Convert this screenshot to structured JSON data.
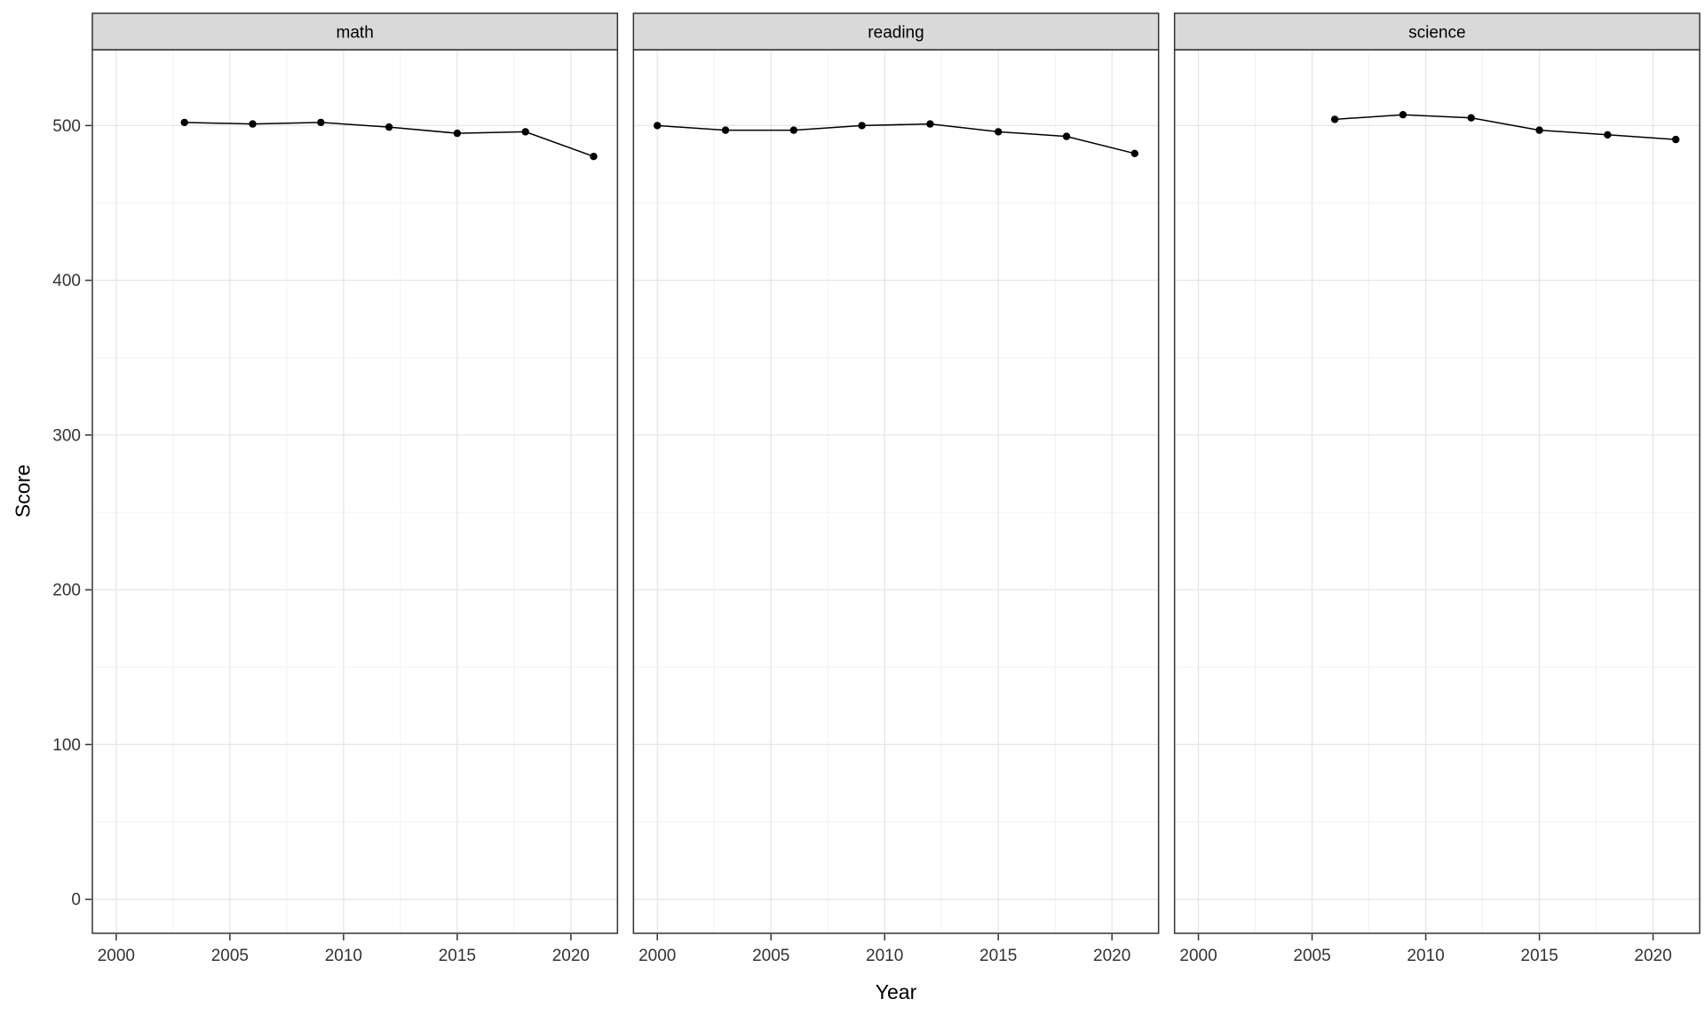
{
  "chart_data": {
    "type": "line",
    "title": "",
    "xlabel": "Year",
    "ylabel": "Score",
    "legend": "none",
    "grid": true,
    "facet_variable_values": [
      "math",
      "reading",
      "science"
    ],
    "x_ticks": [
      2000,
      2005,
      2010,
      2015,
      2020
    ],
    "y_ticks": [
      0,
      100,
      200,
      300,
      400,
      500
    ],
    "x_minor": [
      2002.5,
      2007.5,
      2012.5,
      2017.5
    ],
    "y_minor": [
      50,
      150,
      250,
      350,
      450
    ],
    "x_range": [
      1998.95,
      2022.05
    ],
    "y_range": [
      -22,
      549
    ],
    "facets": [
      {
        "label": "math",
        "x": [
          2003,
          2006,
          2009,
          2012,
          2015,
          2018,
          2021
        ],
        "y": [
          502,
          501,
          502,
          499,
          495,
          496,
          480
        ]
      },
      {
        "label": "reading",
        "x": [
          2000,
          2003,
          2006,
          2009,
          2012,
          2015,
          2018,
          2021
        ],
        "y": [
          500,
          497,
          497,
          500,
          501,
          496,
          493,
          482
        ]
      },
      {
        "label": "science",
        "x": [
          2006,
          2009,
          2012,
          2015,
          2018,
          2021
        ],
        "y": [
          504,
          507,
          505,
          497,
          494,
          491
        ]
      }
    ],
    "colors": {
      "line": "#000000",
      "point": "#000000",
      "strip_bg": "#d9d9d9",
      "panel_border": "#333333",
      "panel_bg": "#ffffff",
      "grid_major": "#e6e6e6",
      "grid_minor": "#f2f2f2",
      "tick_mark": "#333333",
      "tick_label": "#333333",
      "axis_title": "#000000"
    }
  }
}
